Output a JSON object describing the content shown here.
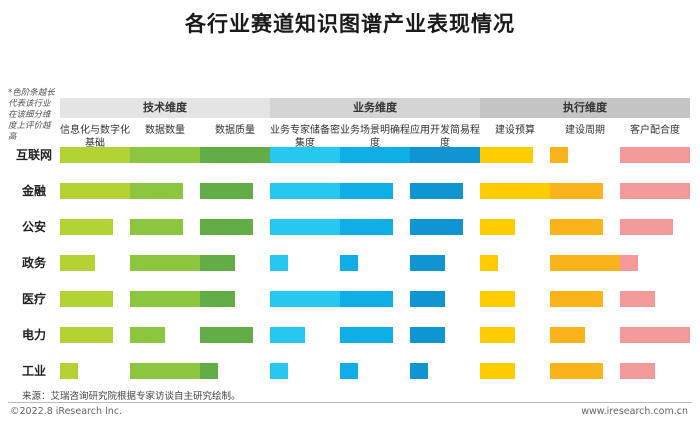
{
  "title": "各行业赛道知识图谱产业表现情况",
  "note": "*色阶条越长代表该行业在该细分维度上评价越高",
  "source": "来源：艾瑞咨询研究院根据专家访谈自主研究绘制。",
  "copyright": "©2022.8 iResearch Inc.",
  "site": "www.iresearch.com.cn",
  "colors": [
    "#b3d334",
    "#8cc63f",
    "#62ad46",
    "#27c8ef",
    "#0faee6",
    "#0f95d2",
    "#ffcc00",
    "#fbb31b",
    "#f4989a"
  ],
  "chart_data": {
    "type": "bar",
    "title": "各行业赛道知识图谱产业表现情况",
    "groups": [
      {
        "name": "技术维度",
        "columns": [
          "信息化与数字化基础",
          "数据数量",
          "数据质量"
        ]
      },
      {
        "name": "业务维度",
        "columns": [
          "业务专家储备密集度",
          "业务场景明确程度",
          "应用开发简易程度"
        ]
      },
      {
        "name": "执行维度",
        "columns": [
          "建设预算",
          "建设周期",
          "客户配合度"
        ]
      }
    ],
    "categories": [
      "互联网",
      "金融",
      "公安",
      "政务",
      "医疗",
      "电力",
      "工业"
    ],
    "series": [
      {
        "name": "信息化与数字化基础",
        "values": [
          1.0,
          1.0,
          0.75,
          0.5,
          0.75,
          0.75,
          0.25
        ]
      },
      {
        "name": "数据数量",
        "values": [
          1.0,
          0.75,
          0.75,
          1.0,
          1.0,
          0.5,
          1.0
        ]
      },
      {
        "name": "数据质量",
        "values": [
          1.0,
          0.75,
          0.75,
          0.5,
          0.5,
          0.75,
          0.25
        ]
      },
      {
        "name": "业务专家储备密集度",
        "values": [
          1.0,
          1.0,
          1.0,
          0.25,
          1.0,
          0.5,
          0.25
        ]
      },
      {
        "name": "业务场景明确程度",
        "values": [
          1.0,
          0.75,
          0.75,
          0.25,
          0.75,
          0.75,
          0.25
        ]
      },
      {
        "name": "应用开发简易程度",
        "values": [
          1.0,
          0.75,
          0.75,
          0.5,
          0.5,
          0.5,
          0.25
        ]
      },
      {
        "name": "建设预算",
        "values": [
          0.75,
          1.0,
          0.5,
          0.25,
          0.5,
          0.5,
          0.5
        ]
      },
      {
        "name": "建设周期",
        "values": [
          0.25,
          0.75,
          0.75,
          1.0,
          0.75,
          0.5,
          0.75
        ]
      },
      {
        "name": "客户配合度",
        "values": [
          1.0,
          1.0,
          0.75,
          0.25,
          0.5,
          1.0,
          0.5
        ]
      }
    ]
  }
}
